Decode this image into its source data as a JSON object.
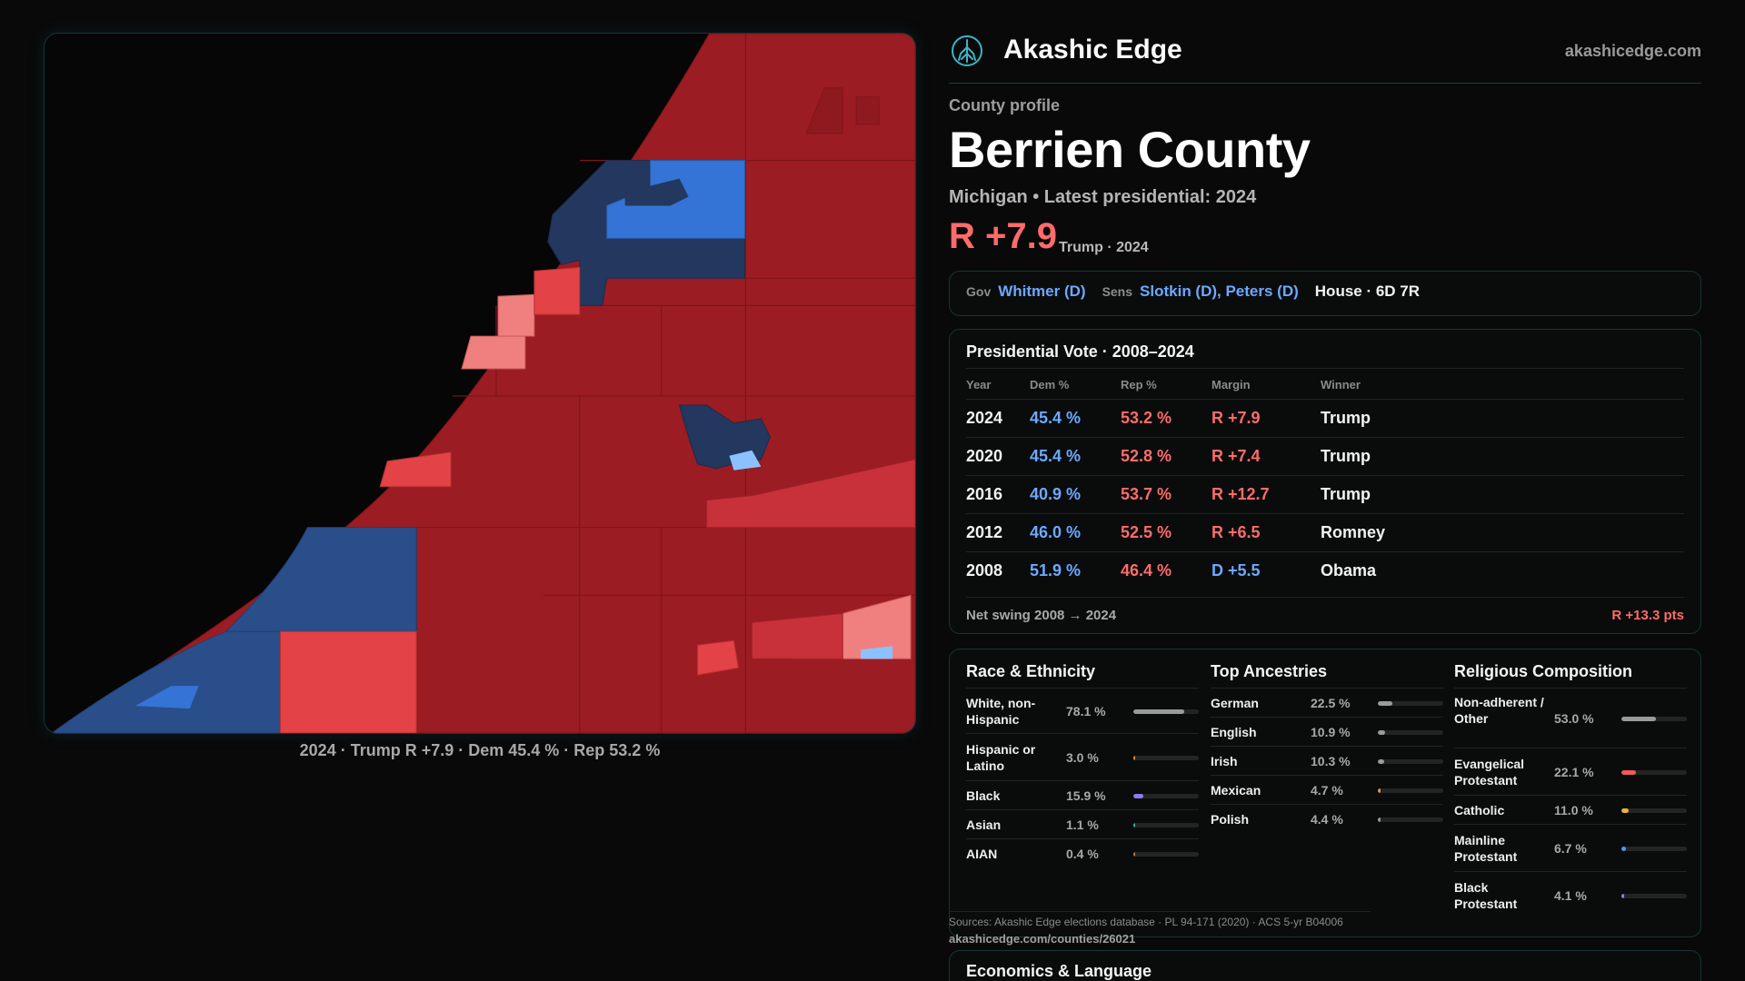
{
  "brand": {
    "name": "Akashic Edge",
    "url": "akashicedge.com",
    "logo_icon": "tree-of-life-icon"
  },
  "map": {
    "caption": "2024 · Trump R +7.9 · Dem 45.4 % · Rep 53.2 %",
    "colors": {
      "strong_rep": "#9b1c22",
      "lean_rep": "#e34346",
      "light_rep": "#f08080",
      "strong_dem": "#2a4e8a",
      "lean_dem": "#3474d6",
      "light_dem": "#8cc1ff",
      "dark_dem": "#23375f",
      "water": "#060606"
    }
  },
  "profile": {
    "eyebrow": "County profile",
    "name": "Berrien County",
    "subtitle": "Michigan • Latest presidential: 2024",
    "margin": "R +7.9",
    "margin_note": "Trump · 2024"
  },
  "officials": {
    "gov_label": "Gov",
    "gov": "Whitmer (D)",
    "sens_label": "Sens",
    "sens": "Slotkin (D), Peters (D)",
    "house": "House · 6D 7R"
  },
  "presidential": {
    "title": "Presidential Vote · 2008–2024",
    "headers": {
      "year": "Year",
      "dem": "Dem %",
      "rep": "Rep %",
      "margin": "Margin",
      "winner": "Winner"
    },
    "rows": [
      {
        "year": "2024",
        "dem": "45.4 %",
        "rep": "53.2 %",
        "margin": "R +7.9",
        "party": "R",
        "winner": "Trump"
      },
      {
        "year": "2020",
        "dem": "45.4 %",
        "rep": "52.8 %",
        "margin": "R +7.4",
        "party": "R",
        "winner": "Trump"
      },
      {
        "year": "2016",
        "dem": "40.9 %",
        "rep": "53.7 %",
        "margin": "R +12.7",
        "party": "R",
        "winner": "Trump"
      },
      {
        "year": "2012",
        "dem": "46.0 %",
        "rep": "52.5 %",
        "margin": "R +6.5",
        "party": "R",
        "winner": "Romney"
      },
      {
        "year": "2008",
        "dem": "51.9 %",
        "rep": "46.4 %",
        "margin": "D +5.5",
        "party": "D",
        "winner": "Obama"
      }
    ],
    "swing_label": "Net swing 2008 → 2024",
    "swing_value": "R +13.3 pts"
  },
  "race": {
    "title": "Race & Ethnicity",
    "rows": [
      {
        "label": "White, non-Hispanic",
        "pct": "78.1 %",
        "share": 0.781,
        "color": "#9a9a9a"
      },
      {
        "label": "Hispanic or Latino",
        "pct": "3.0 %",
        "share": 0.03,
        "color": "#e0963a"
      },
      {
        "label": "Black",
        "pct": "15.9 %",
        "share": 0.159,
        "color": "#8b7cf0"
      },
      {
        "label": "Asian",
        "pct": "1.1 %",
        "share": 0.011,
        "color": "#3fb6a8"
      },
      {
        "label": "AIAN",
        "pct": "0.4 %",
        "share": 0.004,
        "color": "#c07a4a"
      }
    ]
  },
  "ancestry": {
    "title": "Top Ancestries",
    "rows": [
      {
        "label": "German",
        "pct": "22.5 %",
        "share": 0.225,
        "color": "#9a9a9a"
      },
      {
        "label": "English",
        "pct": "10.9 %",
        "share": 0.109,
        "color": "#9a9a9a"
      },
      {
        "label": "Irish",
        "pct": "10.3 %",
        "share": 0.103,
        "color": "#9a9a9a"
      },
      {
        "label": "Mexican",
        "pct": "4.7 %",
        "share": 0.047,
        "color": "#e0963a"
      },
      {
        "label": "Polish",
        "pct": "4.4 %",
        "share": 0.044,
        "color": "#9a9a9a"
      }
    ]
  },
  "religion": {
    "title": "Religious Composition",
    "rows": [
      {
        "label": "Non-adherent / Other",
        "pct": "53.0 %",
        "share": 0.53,
        "color": "#9a9a9a"
      },
      {
        "label": "Evangelical Protestant",
        "pct": "22.1 %",
        "share": 0.221,
        "color": "#f05a5a"
      },
      {
        "label": "Catholic",
        "pct": "11.0 %",
        "share": 0.11,
        "color": "#e8b23a"
      },
      {
        "label": "Mainline Protestant",
        "pct": "6.7 %",
        "share": 0.067,
        "color": "#4a9cf0"
      },
      {
        "label": "Black Protestant",
        "pct": "4.1 %",
        "share": 0.041,
        "color": "#8b7cf0"
      }
    ]
  },
  "footer": {
    "sources": "Sources: Akashic Edge elections database · PL 94-171 (2020) · ACS 5-yr B04006",
    "url": "akashicedge.com/counties/26021"
  },
  "economics": {
    "title": "Economics & Language"
  }
}
